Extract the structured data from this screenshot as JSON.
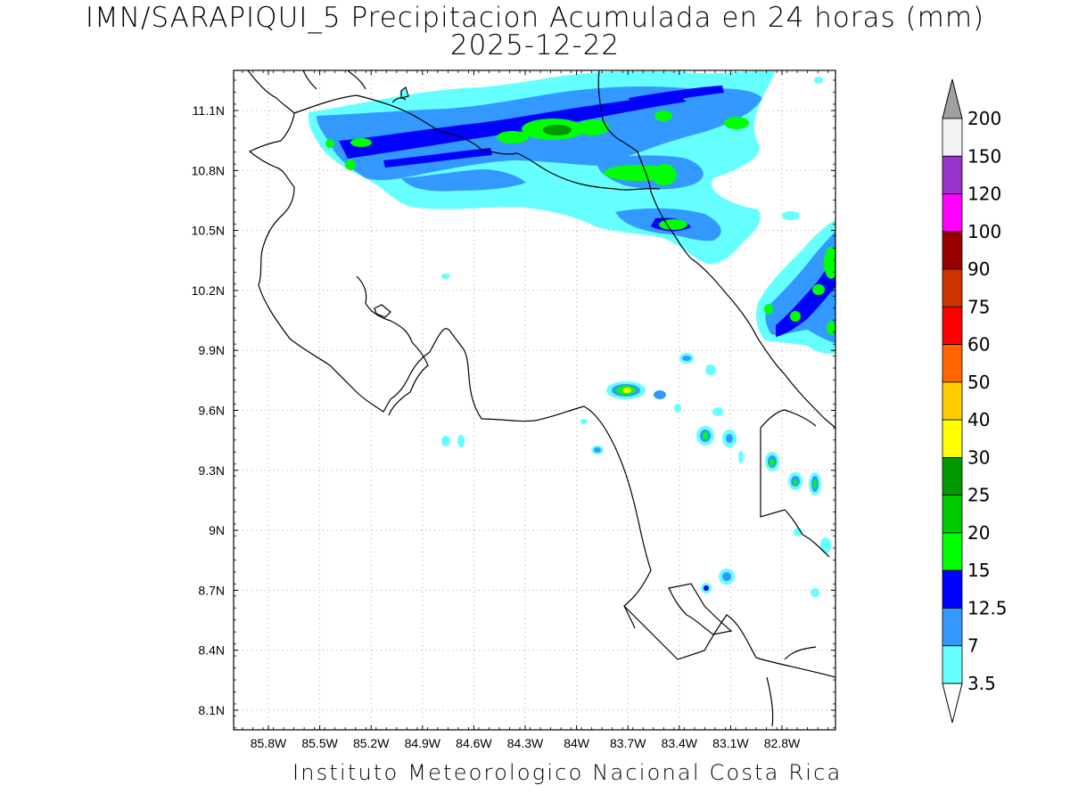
{
  "title": {
    "line1": "IMN/SARAPIQUI_5 Precipitacion Acumulada en 24 horas (mm)",
    "line2": "2025-12-22"
  },
  "footer": "Instituto Meteorologico Nacional Costa Rica",
  "axes": {
    "lon_ticks": [
      "85.8W",
      "85.5W",
      "85.2W",
      "84.9W",
      "84.6W",
      "84.3W",
      "84W",
      "83.7W",
      "83.4W",
      "83.1W",
      "82.8W"
    ],
    "lat_ticks": [
      "11.1N",
      "10.8N",
      "10.5N",
      "10.2N",
      "9.9N",
      "9.6N",
      "9.3N",
      "9N",
      "8.7N",
      "8.4N",
      "8.1N"
    ]
  },
  "colorbar": {
    "labels": [
      "200",
      "150",
      "120",
      "100",
      "90",
      "75",
      "60",
      "50",
      "40",
      "30",
      "25",
      "20",
      "15",
      "12.5",
      "7",
      "3.5"
    ],
    "colors": [
      "#f2f2f2",
      "#9933cc",
      "#ff00ff",
      "#990000",
      "#cc3300",
      "#ff0000",
      "#ff6600",
      "#ffcc00",
      "#ffff00",
      "#009900",
      "#00cc00",
      "#00ff00",
      "#0000ff",
      "#3399ff",
      "#66ffff"
    ],
    "top_arrow_color": "#a0a0a0",
    "bottom_arrow_color": "#ffffff"
  }
}
